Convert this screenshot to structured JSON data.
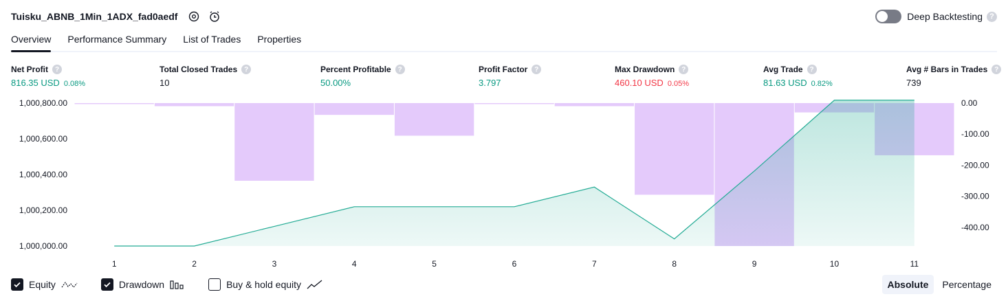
{
  "header": {
    "strategy_name": "Tuisku_ABNB_1Min_1ADX_fad0aedf",
    "deep_backtesting_label": "Deep Backtesting",
    "deep_backtesting_enabled": false
  },
  "tabs": [
    {
      "label": "Overview",
      "active": true
    },
    {
      "label": "Performance Summary",
      "active": false
    },
    {
      "label": "List of Trades",
      "active": false
    },
    {
      "label": "Properties",
      "active": false
    }
  ],
  "metrics": [
    {
      "label": "Net Profit",
      "value": "816.35 USD",
      "pct": "0.08%",
      "tone": "pos"
    },
    {
      "label": "Total Closed Trades",
      "value": "10",
      "pct": "",
      "tone": "neu"
    },
    {
      "label": "Percent Profitable",
      "value": "50.00%",
      "pct": "",
      "tone": "pos"
    },
    {
      "label": "Profit Factor",
      "value": "3.797",
      "pct": "",
      "tone": "pos"
    },
    {
      "label": "Max Drawdown",
      "value": "460.10 USD",
      "pct": "0.05%",
      "tone": "neg"
    },
    {
      "label": "Avg Trade",
      "value": "81.63 USD",
      "pct": "0.82%",
      "tone": "pos"
    },
    {
      "label": "Avg # Bars in Trades",
      "value": "739",
      "pct": "",
      "tone": "neu"
    }
  ],
  "chart_data": {
    "type": "bar",
    "title": "",
    "x": [
      1,
      2,
      3,
      4,
      5,
      6,
      7,
      8,
      9,
      10,
      11
    ],
    "series": [
      {
        "kind": "line",
        "axis": "left",
        "color": "#22ab94",
        "values": [
          1000000,
          1000000,
          1000110,
          1000220,
          1000220,
          1000220,
          1000330,
          1000040,
          1000420,
          1000816.35,
          1000816.35
        ]
      },
      {
        "kind": "bar",
        "axis": "right",
        "color": "#e1c4fb",
        "values": [
          -1,
          -10,
          -250,
          -38,
          -105,
          -2,
          -10,
          -295,
          -460.1,
          -30,
          -168
        ]
      }
    ],
    "ylim_left": [
      1000000,
      1000800
    ],
    "ylim_right": [
      -460.1,
      0
    ],
    "y_left_ticks": [
      "1,000,000.00",
      "1,000,200.00",
      "1,000,400.00",
      "1,000,600.00",
      "1,000,800.00"
    ],
    "y_right_ticks": [
      "0.00",
      "-100.00",
      "-200.00",
      "-300.00",
      "-400.00"
    ],
    "x_tick_labels": [
      "1",
      "2",
      "3",
      "4",
      "5",
      "6",
      "7",
      "8",
      "9",
      "10",
      "11"
    ],
    "grid": false
  },
  "legend": {
    "equity_label": "Equity",
    "equity_checked": true,
    "drawdown_label": "Drawdown",
    "drawdown_checked": true,
    "buyhold_label": "Buy & hold equity",
    "buyhold_checked": false
  },
  "modes": {
    "absolute_label": "Absolute",
    "percentage_label": "Percentage",
    "active": "absolute"
  },
  "icons": {
    "settings": "gear-icon",
    "alert": "alarm-add-icon",
    "help": "question-icon",
    "check": "check-icon"
  },
  "colors": {
    "positive": "#089981",
    "negative": "#f23645",
    "equity_line": "#22ab94",
    "drawdown_bar": "#e1c4fb"
  }
}
